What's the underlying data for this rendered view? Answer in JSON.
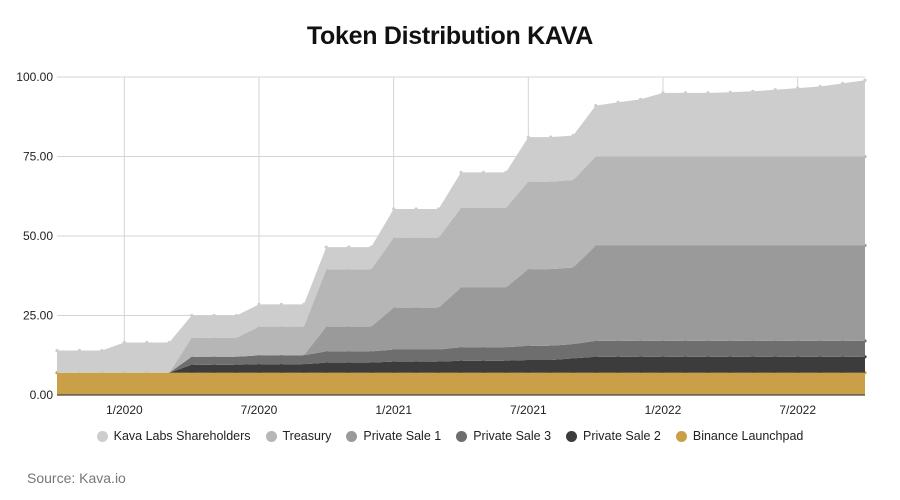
{
  "chart_data": {
    "type": "area",
    "stacked": true,
    "title": "Token Distribution KAVA",
    "source": "Source: Kava.io",
    "xlabel": "",
    "ylabel": "",
    "ylim": [
      0,
      100
    ],
    "y_ticks": [
      "0.00",
      "25.00",
      "50.00",
      "75.00",
      "100.00"
    ],
    "x_ticks": [
      "1/2020",
      "7/2020",
      "1/2021",
      "7/2021",
      "1/2022",
      "7/2022"
    ],
    "grid": true,
    "legend_position": "bottom",
    "x": [
      "2019-10",
      "2019-11",
      "2019-12",
      "2020-01",
      "2020-02",
      "2020-03",
      "2020-04",
      "2020-05",
      "2020-06",
      "2020-07",
      "2020-08",
      "2020-09",
      "2020-10",
      "2020-11",
      "2020-12",
      "2021-01",
      "2021-02",
      "2021-03",
      "2021-04",
      "2021-05",
      "2021-06",
      "2021-07",
      "2021-08",
      "2021-09",
      "2021-10",
      "2021-11",
      "2021-12",
      "2022-01",
      "2022-02",
      "2022-03",
      "2022-04",
      "2022-05",
      "2022-06",
      "2022-07",
      "2022-08",
      "2022-09",
      "2022-10"
    ],
    "series": [
      {
        "name": "Binance Launchpad",
        "color": "#c9a048",
        "values": [
          7,
          7,
          7,
          7,
          7,
          7,
          7,
          7,
          7,
          7,
          7,
          7,
          7,
          7,
          7,
          7,
          7,
          7,
          7,
          7,
          7,
          7,
          7,
          7,
          7,
          7,
          7,
          7,
          7,
          7,
          7,
          7,
          7,
          7,
          7,
          7,
          7
        ]
      },
      {
        "name": "Private Sale 2",
        "color": "#3c3c3c",
        "values": [
          0,
          0,
          0,
          0,
          0,
          0,
          2.5,
          2.5,
          2.5,
          2.7,
          2.7,
          2.7,
          3.2,
          3.2,
          3.2,
          3.5,
          3.5,
          3.5,
          3.8,
          3.8,
          3.8,
          4,
          4,
          4.5,
          5,
          5,
          5,
          5,
          5,
          5,
          5,
          5,
          5,
          5,
          5,
          5,
          5
        ]
      },
      {
        "name": "Private Sale 3",
        "color": "#6e6e6e",
        "values": [
          0,
          0,
          0,
          0,
          0,
          0,
          2.5,
          2.5,
          2.5,
          2.8,
          2.8,
          2.8,
          3.5,
          3.5,
          3.5,
          3.8,
          3.8,
          3.8,
          4.2,
          4.2,
          4.2,
          4.5,
          4.5,
          4.5,
          5,
          5,
          5,
          5,
          5,
          5,
          5,
          5,
          5,
          5,
          5,
          5,
          5
        ]
      },
      {
        "name": "Private Sale 1",
        "color": "#9a9a9a",
        "values": [
          0,
          0,
          0,
          0,
          0,
          0,
          0,
          0,
          0,
          0,
          0,
          0,
          7.8,
          7.8,
          7.8,
          13.2,
          13.2,
          13.2,
          18.8,
          18.8,
          18.8,
          24.1,
          24.1,
          24.1,
          30,
          30,
          30,
          30,
          30,
          30,
          30,
          30,
          30,
          30,
          30,
          30,
          30
        ]
      },
      {
        "name": "Treasury",
        "color": "#b6b6b6",
        "values": [
          0,
          0,
          0,
          0,
          0,
          0,
          6,
          6,
          6,
          9,
          9,
          9,
          18,
          18,
          18,
          22,
          22,
          22,
          25,
          25,
          25,
          27.5,
          27.5,
          27.5,
          28,
          28,
          28,
          28,
          28,
          28,
          28,
          28,
          28,
          28,
          28,
          28,
          28
        ]
      },
      {
        "name": "Kava Labs Shareholders",
        "color": "#cdcdcd",
        "values": [
          7,
          7,
          7,
          9.5,
          9.5,
          9.5,
          7,
          7,
          7,
          7,
          7,
          7,
          7,
          7,
          7,
          9,
          9,
          9,
          11.2,
          11.2,
          11.2,
          14,
          14,
          14,
          16,
          17,
          18,
          20,
          20,
          20,
          20.2,
          20.5,
          21,
          21.5,
          22,
          23,
          24
        ]
      }
    ]
  },
  "legend_order": [
    "Kava Labs Shareholders",
    "Treasury",
    "Private Sale 1",
    "Private Sale 3",
    "Private Sale 2",
    "Binance Launchpad"
  ],
  "colors": {
    "grid": "#d4d4d4",
    "axis": "#444444"
  }
}
